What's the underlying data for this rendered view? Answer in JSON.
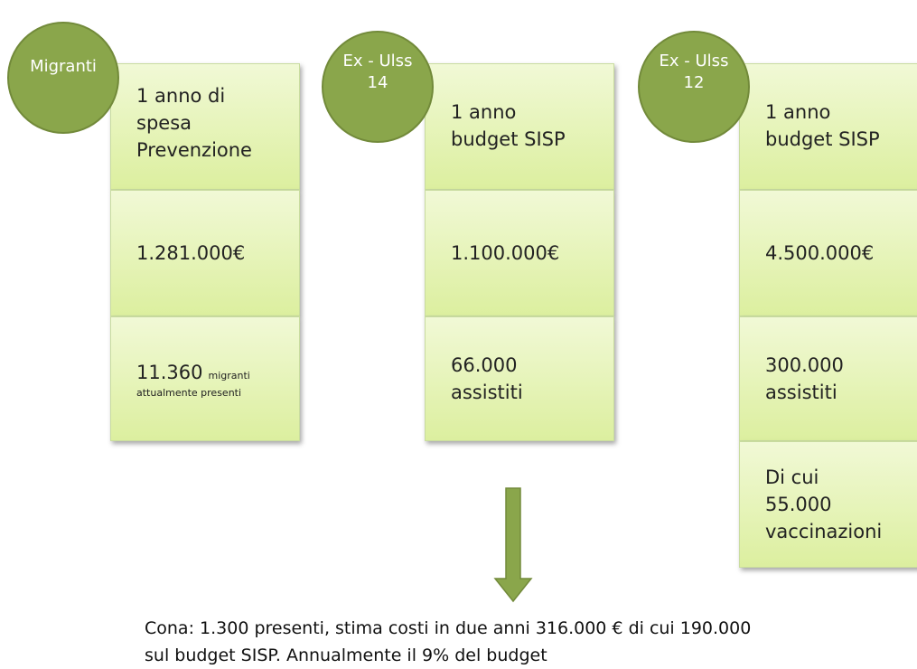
{
  "columns": [
    {
      "label": [
        "Migranti"
      ],
      "cells": [
        {
          "lines": [
            "1 anno di",
            "spesa",
            "Prevenzione"
          ]
        },
        {
          "lines": [
            "1.281.000€"
          ]
        },
        {
          "main": "11.360",
          "small": [
            "migranti",
            "attualmente presenti"
          ]
        }
      ]
    },
    {
      "label": [
        "Ex - Ulss",
        "14"
      ],
      "cells": [
        {
          "lines": [
            "1 anno",
            "budget SISP"
          ]
        },
        {
          "lines": [
            "1.100.000€"
          ]
        },
        {
          "lines": [
            "66.000",
            "assistiti"
          ]
        }
      ]
    },
    {
      "label": [
        "Ex - Ulss",
        "12"
      ],
      "cells": [
        {
          "lines": [
            "1 anno",
            "budget SISP"
          ]
        },
        {
          "lines": [
            "4.500.000€"
          ]
        },
        {
          "lines": [
            "300.000",
            "assistiti"
          ]
        },
        {
          "lines": [
            "Di cui",
            "55.000",
            "vaccinazioni"
          ]
        }
      ]
    }
  ],
  "footer": [
    "Cona: 1.300 presenti, stima costi in due anni 316.000 € di cui 190.000",
    "sul budget SISP. Annualmente il 9% del budget"
  ]
}
